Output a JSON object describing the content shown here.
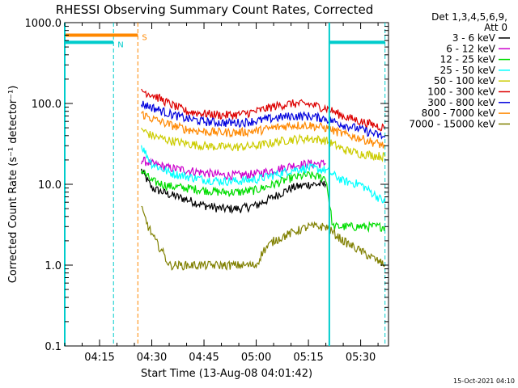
{
  "chart_data": {
    "type": "line",
    "title": "RHESSI Observing Summary Count Rates, Corrected",
    "xlabel": "Start Time (13-Aug-08 04:01:42)",
    "ylabel": "Corrected Count Rate (s⁻¹ detector⁻¹)",
    "yscale": "log",
    "xlim": [
      "04:05",
      "05:38"
    ],
    "ylim": [
      0.1,
      1000
    ],
    "xticks": [
      "04:15",
      "04:30",
      "04:45",
      "05:00",
      "05:15",
      "05:30"
    ],
    "yticks": [
      "0.1",
      "1.0",
      "10.0",
      "100.0",
      "1000.0"
    ],
    "grid": false,
    "legend_position": "right-top",
    "legend_title": "Det 1,3,4,5,6,9,",
    "legend_subtitle": "Att 0",
    "footer_date": "15-Oct-2021 04:10",
    "series": [
      {
        "name": "3 - 6 keV",
        "color": "#000000",
        "x": [
          "04:27",
          "04:30",
          "04:35",
          "04:40",
          "04:45",
          "04:50",
          "04:55",
          "05:00",
          "05:05",
          "05:10",
          "05:15",
          "05:20"
        ],
        "values": [
          15,
          9,
          7.5,
          6.5,
          5.5,
          5,
          5,
          5.5,
          7,
          9,
          10,
          10
        ]
      },
      {
        "name": "6 - 12 keV",
        "color": "#cc00cc",
        "x": [
          "04:27",
          "04:30",
          "04:35",
          "04:40",
          "04:45",
          "04:50",
          "04:55",
          "05:00",
          "05:05",
          "05:10",
          "05:15",
          "05:20"
        ],
        "values": [
          20,
          18,
          16,
          15,
          14,
          13,
          13,
          13.5,
          15,
          17,
          18,
          18
        ]
      },
      {
        "name": "12 - 25 keV",
        "color": "#00dd00",
        "x": [
          "04:27",
          "04:30",
          "04:35",
          "04:40",
          "04:45",
          "04:50",
          "04:55",
          "05:00",
          "05:05",
          "05:10",
          "05:15",
          "05:20",
          "05:22",
          "05:30",
          "05:37"
        ],
        "values": [
          15,
          11,
          9.5,
          9,
          8.5,
          8,
          8,
          8.5,
          10,
          12,
          13,
          12,
          3,
          3,
          3
        ]
      },
      {
        "name": "25 - 50 keV",
        "color": "#00ffff",
        "x": [
          "04:27",
          "04:30",
          "04:35",
          "04:40",
          "04:45",
          "04:50",
          "04:55",
          "05:00",
          "05:05",
          "05:10",
          "05:15",
          "05:20",
          "05:25",
          "05:30",
          "05:37"
        ],
        "values": [
          30,
          18,
          14,
          12.5,
          11.5,
          11,
          11,
          11.5,
          13,
          15,
          16,
          15,
          11,
          10,
          6
        ]
      },
      {
        "name": "50 - 100 keV",
        "color": "#cccc00",
        "x": [
          "04:27",
          "04:30",
          "04:35",
          "04:40",
          "04:45",
          "04:50",
          "04:55",
          "05:00",
          "05:05",
          "05:10",
          "05:15",
          "05:20",
          "05:25",
          "05:30",
          "05:37"
        ],
        "values": [
          48,
          40,
          35,
          32,
          30,
          29,
          29,
          30,
          33,
          36,
          37,
          35,
          27,
          24,
          22
        ]
      },
      {
        "name": "100 - 300 keV",
        "color": "#dd0000",
        "x": [
          "04:27",
          "04:30",
          "04:35",
          "04:40",
          "04:45",
          "04:50",
          "04:55",
          "05:00",
          "05:05",
          "05:10",
          "05:15",
          "05:20",
          "05:25",
          "05:30",
          "05:37"
        ],
        "values": [
          145,
          130,
          100,
          80,
          75,
          72,
          73,
          80,
          92,
          100,
          98,
          88,
          70,
          60,
          50
        ]
      },
      {
        "name": "300 - 800 keV",
        "color": "#0000dd",
        "x": [
          "04:27",
          "04:30",
          "04:35",
          "04:40",
          "04:45",
          "04:50",
          "04:55",
          "05:00",
          "05:05",
          "05:10",
          "05:15",
          "05:20",
          "05:25",
          "05:30",
          "05:37"
        ],
        "values": [
          100,
          90,
          75,
          65,
          60,
          58,
          58,
          61,
          66,
          70,
          70,
          65,
          55,
          48,
          38
        ]
      },
      {
        "name": "800 - 7000 keV",
        "color": "#ff8800",
        "x": [
          "04:27",
          "04:30",
          "04:35",
          "04:40",
          "04:45",
          "04:50",
          "04:55",
          "05:00",
          "05:05",
          "05:10",
          "05:15",
          "05:20",
          "05:25",
          "05:30",
          "05:37"
        ],
        "values": [
          75,
          65,
          55,
          48,
          45,
          44,
          44,
          46,
          50,
          54,
          54,
          50,
          42,
          37,
          30
        ]
      },
      {
        "name": "7000 - 15000 keV",
        "color": "#808000",
        "x": [
          "04:27",
          "04:29",
          "04:31",
          "04:33",
          "04:35",
          "04:40",
          "04:50",
          "05:00",
          "05:02",
          "05:05",
          "05:10",
          "05:15",
          "05:20",
          "05:25",
          "05:30",
          "05:37"
        ],
        "values": [
          5,
          3,
          2,
          1.5,
          1,
          1,
          1,
          1,
          1.5,
          2,
          2.5,
          3,
          3,
          2,
          1.5,
          1
        ]
      }
    ],
    "markers": [
      {
        "label": "N",
        "color": "#00cccc",
        "y": 570,
        "segments": [
          [
            "04:05",
            "04:19"
          ],
          [
            "05:21",
            "05:37"
          ]
        ],
        "vlines": [
          "04:19",
          "05:37"
        ]
      },
      {
        "label": "S",
        "color": "#ff8800",
        "y": 700,
        "segments": [
          [
            "04:05",
            "04:26"
          ]
        ],
        "vlines": [
          "04:26"
        ]
      }
    ],
    "vlines_solid": [
      {
        "x": "05:21",
        "color": "#00cccc"
      },
      {
        "x": "04:05",
        "color": "#00cccc"
      }
    ]
  }
}
